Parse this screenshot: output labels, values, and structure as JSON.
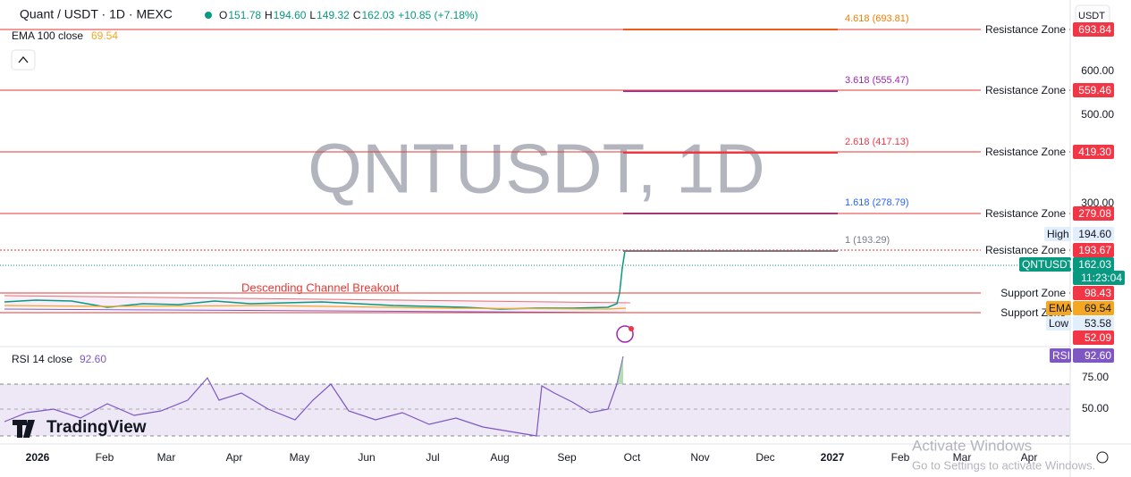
{
  "header": {
    "symbol": "Quant / USDT · 1D · MEXC",
    "ohlc": [
      {
        "label": "O",
        "value": "151.78"
      },
      {
        "label": "H",
        "value": "194.60"
      },
      {
        "label": "L",
        "value": "149.32"
      },
      {
        "label": "C",
        "value": "162.03"
      }
    ],
    "change": "+10.85 (+7.18%)",
    "currency": "USDT"
  },
  "ema_legend": {
    "name": "EMA 100 close",
    "value": "69.54"
  },
  "watermark": "QNTUSDT, 1D",
  "price_scale": [
    "600.00",
    "500.00",
    "300.00"
  ],
  "fib_levels": [
    "4.618 (693.81)",
    "3.618 (555.47)",
    "2.618 (417.13)",
    "1.618 (278.79)",
    "1 (193.29)"
  ],
  "zones": [
    {
      "label": "Resistance Zone",
      "price": "693.84"
    },
    {
      "label": "Resistance Zone",
      "price": "559.46"
    },
    {
      "label": "Resistance Zone",
      "price": "419.30"
    },
    {
      "label": "Resistance Zone",
      "price": "279.08"
    },
    {
      "label": "Resistance Zone",
      "price": "193.67"
    },
    {
      "label": "Support Zone",
      "price": "98.43"
    },
    {
      "label": "Support Zone",
      "price": "52.09"
    }
  ],
  "badges": {
    "high": {
      "label": "High",
      "value": "194.60"
    },
    "last": {
      "label": "QNTUSDT",
      "value": "162.03",
      "countdown": "11:23:04"
    },
    "ema": {
      "label": "EMA",
      "value": "69.54"
    },
    "low": {
      "label": "Low",
      "value": "53.58"
    },
    "rsi": {
      "label": "RSI",
      "value": "92.60"
    }
  },
  "annotation": "Descending Channel Breakout",
  "rsi_legend": {
    "name": "RSI 14 close",
    "value": "92.60"
  },
  "rsi_scale": [
    "75.00",
    "50.00"
  ],
  "time_axis": [
    "2026",
    "Feb",
    "Mar",
    "Apr",
    "May",
    "Jun",
    "Jul",
    "Aug",
    "Sep",
    "Oct",
    "Nov",
    "Dec",
    "2027",
    "Feb",
    "Mar",
    "Apr"
  ],
  "logo": "TradingView",
  "windows_notice": {
    "title": "Activate Windows",
    "subtitle": "Go to Settings to activate Windows."
  }
}
